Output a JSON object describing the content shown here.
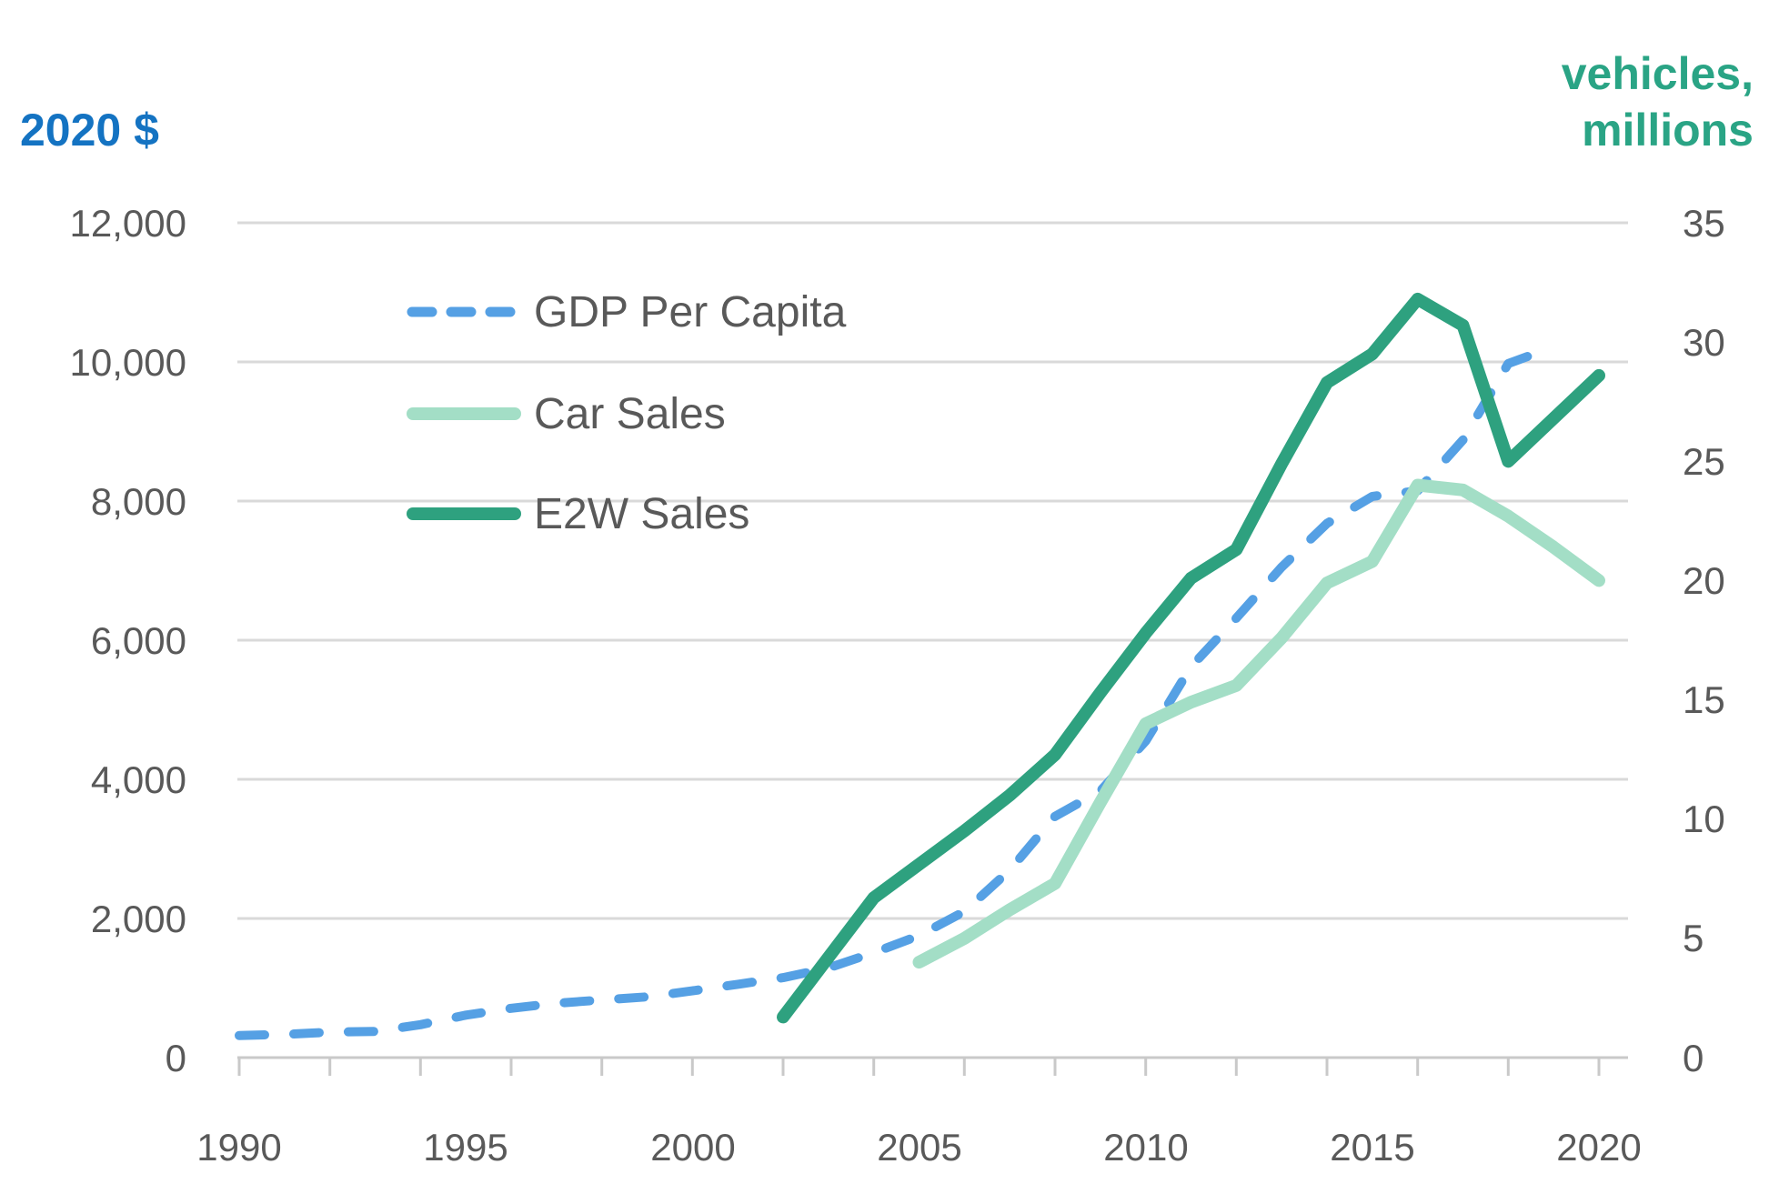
{
  "titles": {
    "left_axis": "2020 $",
    "right_axis_line1": "vehicles,",
    "right_axis_line2": "millions"
  },
  "colors": {
    "left_title": "#1473C2",
    "right_title": "#2AA485",
    "gdp_line": "#55A0E4",
    "car_line": "#A3DEC6",
    "e2w_line": "#2EA17F",
    "axis_text": "#595959",
    "gridline": "#D9D9D9",
    "axis_line": "#C9C9C9"
  },
  "legend": {
    "gdp_label": "GDP Per Capita",
    "car_label": "Car Sales",
    "e2w_label": "E2W Sales"
  },
  "chart_data": {
    "type": "line",
    "title": "",
    "grid": "horizontal-only",
    "legend_position": "upper-left-inside",
    "x_axis": {
      "range": [
        1990,
        2020
      ],
      "labels": [
        "1990",
        "1995",
        "2000",
        "2005",
        "2010",
        "2015",
        "2020"
      ],
      "label_years": [
        1990,
        1995,
        2000,
        2005,
        2010,
        2015,
        2020
      ],
      "minor_tick_step_years": 2
    },
    "left_axis": {
      "label": "2020 $",
      "range": [
        0,
        12000
      ],
      "tick_values": [
        12000,
        10000,
        8000,
        6000,
        4000,
        2000,
        0
      ],
      "tick_labels": [
        "12,000",
        "10,000",
        "8,000",
        "6,000",
        "4,000",
        "2,000",
        "0"
      ]
    },
    "right_axis": {
      "label": "vehicles, millions",
      "range": [
        0,
        35
      ],
      "tick_values": [
        35,
        30,
        25,
        20,
        15,
        10,
        5,
        0
      ],
      "tick_labels": [
        "35",
        "30",
        "25",
        "20",
        "15",
        "10",
        "5",
        "0"
      ]
    },
    "series": [
      {
        "name": "GDP Per Capita",
        "axis": "left",
        "style": "dashed",
        "color_key": "gdp_line",
        "x_start": 1990,
        "x": [
          1990,
          1991,
          1992,
          1993,
          1994,
          1995,
          1996,
          1997,
          1998,
          1999,
          2000,
          2001,
          2002,
          2003,
          2004,
          2005,
          2006,
          2007,
          2008,
          2009,
          2010,
          2011,
          2012,
          2013,
          2014,
          2015,
          2016,
          2017,
          2018,
          2019
        ],
        "values": [
          318,
          333,
          366,
          377,
          473,
          610,
          709,
          782,
          829,
          873,
          959,
          1053,
          1149,
          1289,
          1509,
          1753,
          2099,
          2694,
          3468,
          3832,
          4550,
          5618,
          6317,
          7051,
          7679,
          8067,
          8148,
          8879,
          9977,
          10217
        ]
      },
      {
        "name": "Car Sales",
        "axis": "right",
        "style": "solid",
        "color_key": "car_line",
        "x_start": 2005,
        "x": [
          2005,
          2006,
          2007,
          2008,
          2009,
          2010,
          2011,
          2012,
          2013,
          2014,
          2015,
          2016,
          2017,
          2018,
          2019,
          2020
        ],
        "values": [
          4.0,
          5.0,
          6.2,
          7.3,
          10.7,
          14.0,
          14.9,
          15.6,
          17.6,
          19.9,
          20.8,
          24.0,
          23.8,
          22.7,
          21.4,
          20.0
        ]
      },
      {
        "name": "E2W Sales",
        "axis": "right",
        "style": "solid",
        "color_key": "e2w_line",
        "x_start": 2002,
        "x": [
          2002,
          2003,
          2004,
          2005,
          2006,
          2007,
          2008,
          2009,
          2010,
          2011,
          2012,
          2013,
          2014,
          2015,
          2016,
          2017,
          2018,
          2019,
          2020
        ],
        "values": [
          1.7,
          4.2,
          6.7,
          8.1,
          9.5,
          11.0,
          12.7,
          15.3,
          17.8,
          20.1,
          21.3,
          24.9,
          28.3,
          29.5,
          31.8,
          30.7,
          25.0,
          26.8,
          28.6
        ]
      }
    ]
  }
}
